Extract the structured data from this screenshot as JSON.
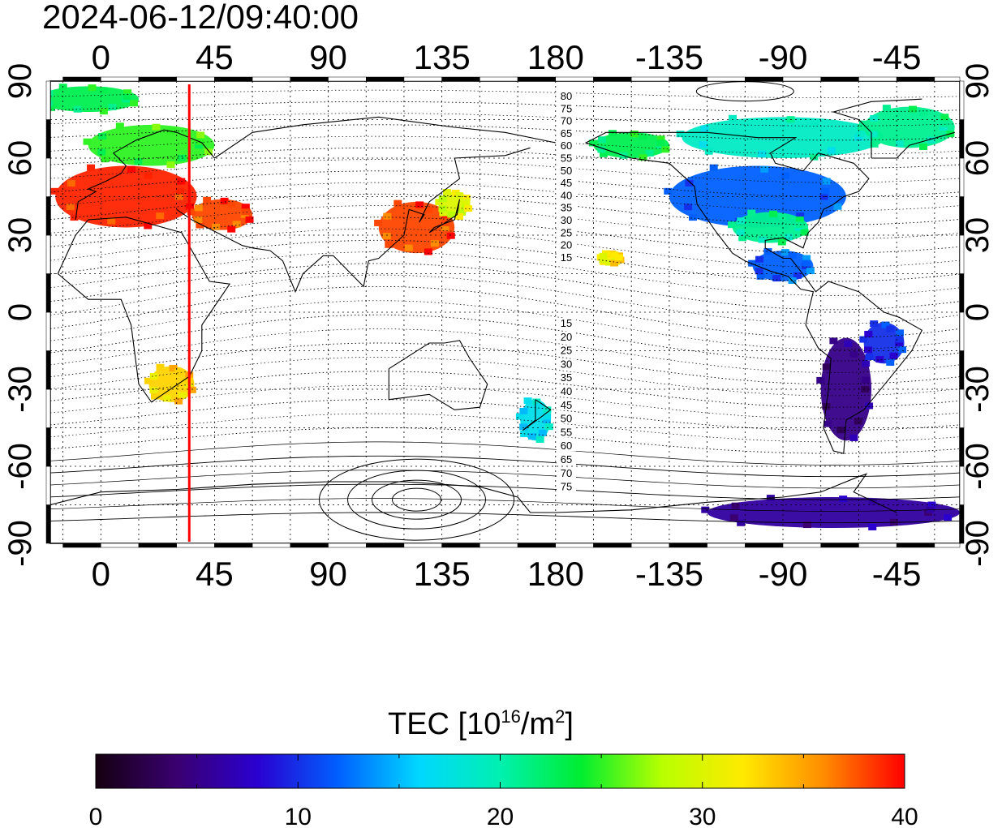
{
  "timestamp": "2024-06-12/09:40:00",
  "x_ticks": [
    "0",
    "45",
    "90",
    "135",
    "180",
    "-135",
    "-90",
    "-45"
  ],
  "y_ticks_left": [
    "90",
    "60",
    "30",
    "0",
    "-30",
    "-60",
    "-90"
  ],
  "y_ticks_right": [
    "90",
    "60",
    "30",
    "0",
    "-30",
    "-60",
    "-90"
  ],
  "contour_labels_north": [
    "80",
    "75",
    "70",
    "65",
    "60",
    "55",
    "50",
    "45",
    "40",
    "35",
    "30",
    "25",
    "20",
    "15"
  ],
  "contour_labels_south": [
    "15",
    "20",
    "25",
    "30",
    "35",
    "40",
    "45",
    "50",
    "55",
    "60",
    "65",
    "70",
    "75"
  ],
  "colorbar": {
    "title_main": "TEC  [10",
    "title_sup1": "16",
    "title_mid": "/m",
    "title_sup2": "2",
    "title_end": "]",
    "labels": [
      "0",
      "10",
      "20",
      "30",
      "40"
    ],
    "min": 0,
    "max": 40,
    "stops": [
      "#140010",
      "#3a0070",
      "#2a00d0",
      "#0060ff",
      "#00d8ff",
      "#00f0b0",
      "#00ee30",
      "#b8ff00",
      "#ffea00",
      "#ff8c00",
      "#ff0000"
    ]
  },
  "map": {
    "lon_range": [
      -20,
      340
    ],
    "lat_range": [
      -90,
      90
    ],
    "terminator_lon": 35,
    "terminator_color": "#ff0000",
    "tec_regions": [
      {
        "name": "europe",
        "lon": 10,
        "lat": 45,
        "rx": 28,
        "ry": 12,
        "tec": 39
      },
      {
        "name": "north-europe",
        "lon": 20,
        "lat": 65,
        "rx": 25,
        "ry": 8,
        "tec": 25
      },
      {
        "name": "greenland-north",
        "lon": -5,
        "lat": 83,
        "rx": 20,
        "ry": 5,
        "tec": 23
      },
      {
        "name": "middle-east",
        "lon": 48,
        "lat": 38,
        "rx": 12,
        "ry": 6,
        "tec": 38
      },
      {
        "name": "east-asia",
        "lon": 125,
        "lat": 33,
        "rx": 15,
        "ry": 10,
        "tec": 38
      },
      {
        "name": "japan",
        "lon": 140,
        "lat": 42,
        "rx": 6,
        "ry": 5,
        "tec": 30
      },
      {
        "name": "south-africa",
        "lon": 28,
        "lat": -28,
        "rx": 9,
        "ry": 7,
        "tec": 33
      },
      {
        "name": "north-america",
        "lon": -100,
        "lat": 45,
        "rx": 35,
        "ry": 12,
        "tec": 12
      },
      {
        "name": "canada",
        "lon": -90,
        "lat": 68,
        "rx": 40,
        "ry": 8,
        "tec": 19
      },
      {
        "name": "alaska",
        "lon": -150,
        "lat": 65,
        "rx": 15,
        "ry": 5,
        "tec": 23
      },
      {
        "name": "greenland",
        "lon": -40,
        "lat": 72,
        "rx": 18,
        "ry": 8,
        "tec": 21
      },
      {
        "name": "us-south",
        "lon": -95,
        "lat": 33,
        "rx": 15,
        "ry": 6,
        "tec": 21
      },
      {
        "name": "central-america",
        "lon": -90,
        "lat": 18,
        "rx": 12,
        "ry": 6,
        "tec": 12
      },
      {
        "name": "south-america",
        "lon": -65,
        "lat": -30,
        "rx": 10,
        "ry": 20,
        "tec": 5
      },
      {
        "name": "brazil",
        "lon": -50,
        "lat": -12,
        "rx": 8,
        "ry": 8,
        "tec": 10
      },
      {
        "name": "antarctica",
        "lon": -70,
        "lat": -78,
        "rx": 50,
        "ry": 6,
        "tec": 6
      },
      {
        "name": "new-zealand",
        "lon": 172,
        "lat": -42,
        "rx": 6,
        "ry": 8,
        "tec": 17
      },
      {
        "name": "hawaii",
        "lon": -158,
        "lat": 21,
        "rx": 4,
        "ry": 2,
        "tec": 32
      }
    ]
  }
}
